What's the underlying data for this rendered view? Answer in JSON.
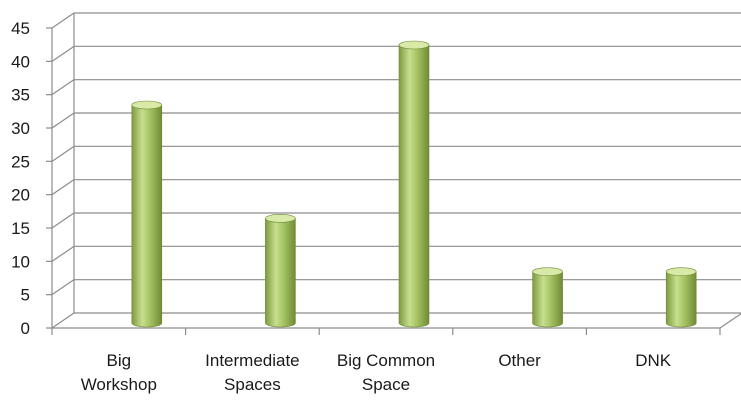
{
  "chart_data": {
    "type": "bar",
    "style": "3d-cylinder",
    "categories": [
      [
        "Big",
        "Workshop"
      ],
      [
        "Intermediate",
        "Spaces"
      ],
      [
        "Big Common",
        "Space"
      ],
      [
        "Other"
      ],
      [
        "DNK"
      ]
    ],
    "values": [
      33,
      16,
      42,
      8,
      8
    ],
    "ylim": [
      0,
      45
    ],
    "yticks": [
      "0",
      "5",
      "10",
      "15",
      "20",
      "25",
      "30",
      "35",
      "40",
      "45"
    ],
    "grid": true,
    "legend": "none",
    "colors": {
      "bar": "#9BBB59",
      "bar_light": "#D8E9A8",
      "bar_dark": "#6E8A36",
      "grid": "#8c8c8c"
    }
  }
}
